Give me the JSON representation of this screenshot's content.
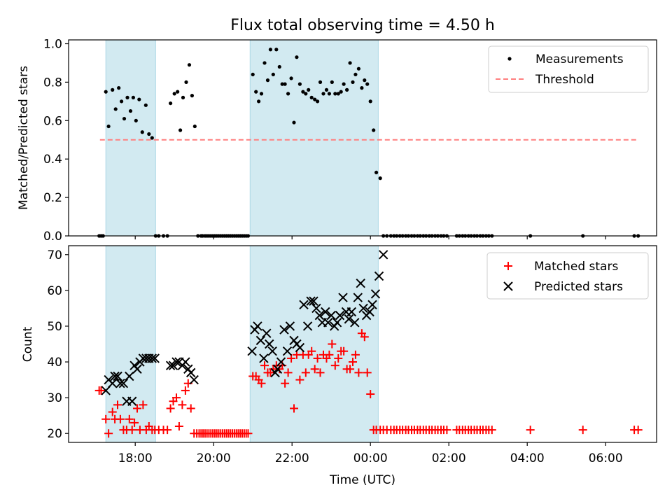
{
  "title": "Flux total observing time = 4.50 h",
  "colors": {
    "shade": "#add8e6",
    "measurement": "#000000",
    "threshold": "#ff7f7f",
    "matched": "#ff0000",
    "predicted": "#000000"
  },
  "chart_data": [
    {
      "type": "scatter",
      "ylabel": "Matched/Predicted stars",
      "xlim": [
        16.3,
        31.3
      ],
      "ylim": [
        0.0,
        1.02
      ],
      "yticks": [
        0.0,
        0.2,
        0.4,
        0.6,
        0.8,
        1.0
      ],
      "ytick_labels": [
        "0.0",
        "0.2",
        "0.4",
        "0.6",
        "0.8",
        "1.0"
      ],
      "xticks": [
        18,
        20,
        22,
        24,
        26,
        28,
        30
      ],
      "legend_position": "top-right",
      "legend": [
        "Measurements",
        "Threshold"
      ],
      "shaded_intervals": [
        [
          17.25,
          18.52
        ],
        [
          20.93,
          24.2
        ]
      ],
      "threshold": {
        "name": "Threshold",
        "y": 0.5,
        "x": [
          17.1,
          30.8
        ]
      },
      "series": [
        {
          "name": "Measurements",
          "x": [
            17.08,
            17.13,
            17.18,
            17.25,
            17.32,
            17.42,
            17.5,
            17.58,
            17.65,
            17.72,
            17.8,
            17.88,
            17.95,
            18.02,
            18.1,
            18.18,
            18.27,
            18.35,
            18.43,
            18.52,
            18.6,
            18.72,
            18.82,
            18.9,
            19.0,
            19.08,
            19.15,
            19.22,
            19.3,
            19.38,
            19.45,
            19.52,
            19.6,
            19.68,
            19.72,
            19.78,
            19.83,
            19.88,
            19.93,
            19.98,
            20.03,
            20.08,
            20.13,
            20.18,
            20.23,
            20.28,
            20.33,
            20.38,
            20.43,
            20.48,
            20.53,
            20.58,
            20.63,
            20.68,
            20.73,
            20.78,
            20.83,
            20.88,
            21.0,
            21.08,
            21.15,
            21.22,
            21.3,
            21.38,
            21.45,
            21.52,
            21.6,
            21.68,
            21.75,
            21.82,
            21.9,
            21.98,
            22.05,
            22.12,
            22.2,
            22.28,
            22.35,
            22.42,
            22.5,
            22.58,
            22.65,
            22.72,
            22.8,
            22.88,
            22.95,
            23.02,
            23.1,
            23.18,
            23.25,
            23.32,
            23.4,
            23.48,
            23.55,
            23.62,
            23.7,
            23.78,
            23.85,
            23.92,
            24.0,
            24.08,
            24.15,
            24.25,
            24.33,
            24.42,
            24.52,
            24.6,
            24.67,
            24.75,
            24.82,
            24.9,
            24.97,
            25.05,
            25.12,
            25.2,
            25.27,
            25.35,
            25.42,
            25.5,
            25.57,
            25.65,
            25.72,
            25.8,
            25.87,
            25.95,
            26.2,
            26.27,
            26.35,
            26.42,
            26.5,
            26.57,
            26.65,
            26.72,
            26.8,
            26.87,
            26.95,
            27.02,
            27.1,
            28.08,
            29.42,
            30.73,
            30.83
          ],
          "values": [
            0.0,
            0.0,
            0.0,
            0.75,
            0.57,
            0.76,
            0.66,
            0.77,
            0.7,
            0.61,
            0.72,
            0.65,
            0.72,
            0.6,
            0.71,
            0.54,
            0.68,
            0.53,
            0.51,
            0.0,
            0.0,
            0.0,
            0.0,
            0.69,
            0.74,
            0.75,
            0.55,
            0.72,
            0.8,
            0.89,
            0.73,
            0.57,
            0.0,
            0.0,
            0.0,
            0.0,
            0.0,
            0.0,
            0.0,
            0.0,
            0.0,
            0.0,
            0.0,
            0.0,
            0.0,
            0.0,
            0.0,
            0.0,
            0.0,
            0.0,
            0.0,
            0.0,
            0.0,
            0.0,
            0.0,
            0.0,
            0.0,
            0.0,
            0.84,
            0.75,
            0.7,
            0.74,
            0.9,
            0.81,
            0.97,
            0.84,
            0.97,
            0.88,
            0.79,
            0.79,
            0.74,
            0.82,
            0.59,
            0.93,
            0.79,
            0.75,
            0.74,
            0.76,
            0.72,
            0.71,
            0.7,
            0.8,
            0.74,
            0.76,
            0.74,
            0.8,
            0.74,
            0.74,
            0.75,
            0.79,
            0.76,
            0.9,
            0.8,
            0.84,
            0.87,
            0.77,
            0.81,
            0.79,
            0.7,
            0.55,
            0.33,
            0.3,
            0.0,
            0.0,
            0.0,
            0.0,
            0.0,
            0.0,
            0.0,
            0.0,
            0.0,
            0.0,
            0.0,
            0.0,
            0.0,
            0.0,
            0.0,
            0.0,
            0.0,
            0.0,
            0.0,
            0.0,
            0.0,
            0.0,
            0.0,
            0.0,
            0.0,
            0.0,
            0.0,
            0.0,
            0.0,
            0.0,
            0.0,
            0.0,
            0.0,
            0.0,
            0.0,
            0.0,
            0.0,
            0.0,
            0.0
          ]
        }
      ]
    },
    {
      "type": "scatter",
      "xlabel": "Time (UTC)",
      "ylabel": "Count",
      "xlim": [
        16.3,
        31.3
      ],
      "ylim": [
        17.5,
        72.5
      ],
      "yticks": [
        20,
        30,
        40,
        50,
        60,
        70
      ],
      "ytick_labels": [
        "20",
        "30",
        "40",
        "50",
        "60",
        "70"
      ],
      "xticks": [
        18,
        20,
        22,
        24,
        26,
        28,
        30
      ],
      "xtick_labels": [
        "18:00",
        "20:00",
        "22:00",
        "00:00",
        "02:00",
        "04:00",
        "06:00"
      ],
      "legend_position": "top-right",
      "legend": [
        "Matched stars",
        "Predicted stars"
      ],
      "shaded_intervals": [
        [
          17.25,
          18.52
        ],
        [
          20.93,
          24.2
        ]
      ],
      "series": [
        {
          "name": "Matched stars",
          "x": [
            17.08,
            17.13,
            17.25,
            17.32,
            17.42,
            17.48,
            17.55,
            17.62,
            17.7,
            17.78,
            17.85,
            17.92,
            17.98,
            18.05,
            18.12,
            18.2,
            18.28,
            18.35,
            18.43,
            18.5,
            18.6,
            18.72,
            18.82,
            18.9,
            18.97,
            19.05,
            19.12,
            19.2,
            19.28,
            19.35,
            19.42,
            19.5,
            19.57,
            19.63,
            19.68,
            19.73,
            19.78,
            19.83,
            19.88,
            19.93,
            19.98,
            20.03,
            20.08,
            20.13,
            20.18,
            20.23,
            20.28,
            20.33,
            20.38,
            20.43,
            20.48,
            20.53,
            20.58,
            20.63,
            20.68,
            20.73,
            20.78,
            20.83,
            20.88,
            21.0,
            21.08,
            21.15,
            21.22,
            21.3,
            21.38,
            21.45,
            21.52,
            21.6,
            21.68,
            21.75,
            21.82,
            21.9,
            21.98,
            22.05,
            22.12,
            22.2,
            22.28,
            22.35,
            22.42,
            22.5,
            22.58,
            22.65,
            22.72,
            22.8,
            22.88,
            22.95,
            23.02,
            23.1,
            23.18,
            23.25,
            23.32,
            23.4,
            23.48,
            23.55,
            23.62,
            23.7,
            23.78,
            23.85,
            23.92,
            24.0,
            24.08,
            24.15,
            24.25,
            24.33,
            24.42,
            24.52,
            24.6,
            24.67,
            24.75,
            24.82,
            24.9,
            24.97,
            25.05,
            25.12,
            25.2,
            25.27,
            25.35,
            25.42,
            25.5,
            25.57,
            25.65,
            25.72,
            25.8,
            25.87,
            25.95,
            26.2,
            26.27,
            26.35,
            26.42,
            26.5,
            26.57,
            26.65,
            26.72,
            26.8,
            26.87,
            26.95,
            27.02,
            27.1,
            28.08,
            29.42,
            30.73,
            30.83
          ],
          "values": [
            32,
            32,
            24,
            20,
            26,
            24,
            28,
            24,
            21,
            21,
            24,
            21,
            23,
            27,
            21,
            28,
            21,
            22,
            21,
            21,
            21,
            21,
            21,
            27,
            29,
            30,
            22,
            28,
            32,
            34,
            27,
            20,
            20,
            20,
            20,
            20,
            20,
            20,
            20,
            20,
            20,
            20,
            20,
            20,
            20,
            20,
            20,
            20,
            20,
            20,
            20,
            20,
            20,
            20,
            20,
            20,
            20,
            20,
            20,
            36,
            36,
            35,
            34,
            39,
            37,
            37,
            38,
            39,
            38,
            39,
            34,
            37,
            41,
            27,
            42,
            35,
            42,
            37,
            42,
            43,
            38,
            41,
            37,
            42,
            41,
            42,
            45,
            39,
            41,
            43,
            43,
            38,
            38,
            40,
            42,
            37,
            48,
            47,
            37,
            31,
            21,
            21,
            21,
            21,
            21,
            21,
            21,
            21,
            21,
            21,
            21,
            21,
            21,
            21,
            21,
            21,
            21,
            21,
            21,
            21,
            21,
            21,
            21,
            21,
            21,
            21,
            21,
            21,
            21,
            21,
            21,
            21,
            21,
            21,
            21,
            21,
            21,
            21,
            21,
            21,
            21,
            21
          ]
        },
        {
          "name": "Predicted stars",
          "x": [
            17.25,
            17.32,
            17.42,
            17.48,
            17.55,
            17.62,
            17.7,
            17.78,
            17.85,
            17.92,
            17.98,
            18.05,
            18.12,
            18.2,
            18.28,
            18.35,
            18.43,
            18.5,
            18.9,
            18.97,
            19.05,
            19.12,
            19.2,
            19.28,
            19.35,
            19.42,
            19.5,
            20.98,
            21.05,
            21.12,
            21.2,
            21.28,
            21.35,
            21.42,
            21.5,
            21.57,
            21.63,
            21.72,
            21.8,
            21.88,
            21.95,
            22.05,
            22.12,
            22.2,
            22.3,
            22.4,
            22.48,
            22.55,
            22.62,
            22.7,
            22.77,
            22.85,
            22.92,
            23.0,
            23.08,
            23.15,
            23.22,
            23.3,
            23.38,
            23.45,
            23.52,
            23.6,
            23.68,
            23.75,
            23.82,
            23.9,
            23.98,
            24.05,
            24.13,
            24.22,
            24.33
          ],
          "values": [
            32,
            35,
            34,
            36,
            36,
            34,
            34,
            29,
            36,
            29,
            39,
            38,
            40,
            41,
            41,
            41,
            41,
            41,
            39,
            39,
            40,
            40,
            39,
            40,
            38,
            37,
            35,
            43,
            49,
            50,
            46,
            41,
            48,
            45,
            43,
            37,
            38,
            40,
            49,
            43,
            50,
            46,
            45,
            44,
            56,
            50,
            57,
            57,
            55,
            53,
            51,
            54,
            51,
            53,
            50,
            51,
            53,
            58,
            54,
            52,
            54,
            51,
            58,
            62,
            55,
            53,
            54,
            56,
            59,
            64,
            70
          ]
        }
      ]
    }
  ]
}
